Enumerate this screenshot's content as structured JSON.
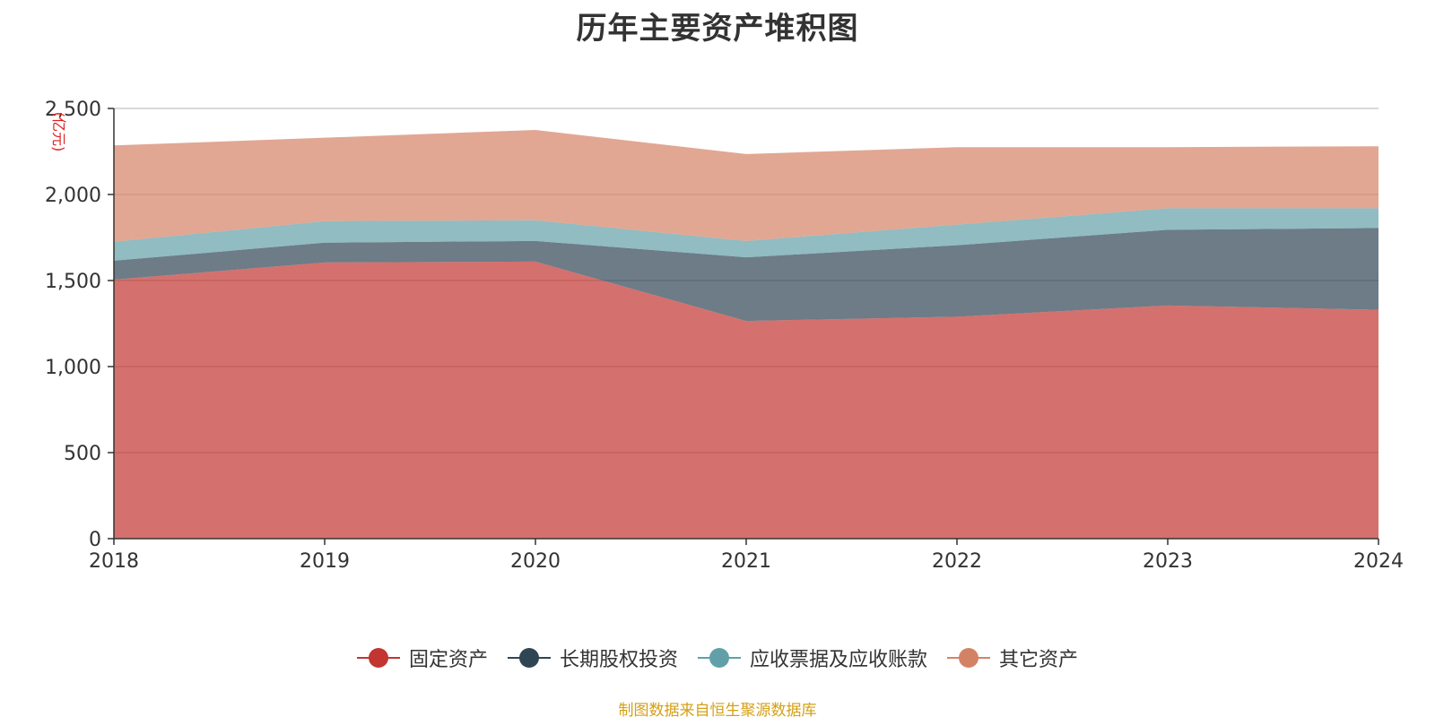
{
  "colors": {
    "fixed_assets": "#c23531",
    "long_term_equity": "#2f4554",
    "receivables": "#61a0a8",
    "other_assets": "#d48265",
    "source_note": "#d4a017",
    "unit_label": "#e02020"
  },
  "chart_data": {
    "type": "area",
    "stacked": true,
    "title": "历年主要资产堆积图",
    "unit": "(亿元)",
    "categories": [
      "2018",
      "2019",
      "2020",
      "2021",
      "2022",
      "2023",
      "2024"
    ],
    "ylim": [
      0,
      2500
    ],
    "yticks": [
      0,
      500,
      1000,
      1500,
      2000,
      2500
    ],
    "ytick_labels": [
      "0",
      "500",
      "1,000",
      "1,500",
      "2,000",
      "2,500"
    ],
    "legend_position": "bottom",
    "series": [
      {
        "name": "固定资产",
        "color_key": "fixed_assets",
        "values": [
          1505,
          1605,
          1610,
          1265,
          1290,
          1355,
          1330
        ]
      },
      {
        "name": "长期股权投资",
        "color_key": "long_term_equity",
        "values": [
          110,
          115,
          120,
          370,
          415,
          440,
          475
        ]
      },
      {
        "name": "应收票据及应收账款",
        "color_key": "receivables",
        "values": [
          110,
          125,
          120,
          95,
          120,
          125,
          115
        ]
      },
      {
        "name": "其它资产",
        "color_key": "other_assets",
        "values": [
          560,
          485,
          525,
          505,
          450,
          355,
          360
        ]
      }
    ]
  },
  "source_note": "制图数据来自恒生聚源数据库"
}
